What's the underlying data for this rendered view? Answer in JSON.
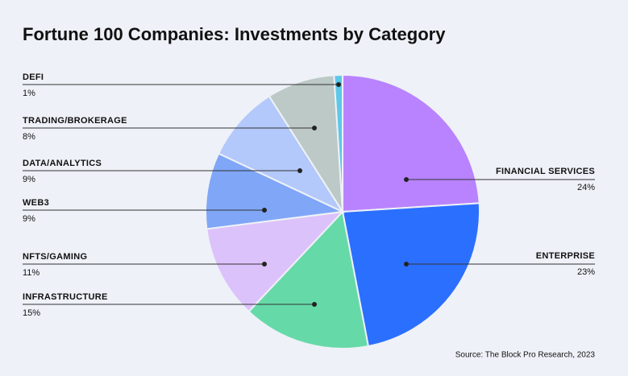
{
  "chart_data": {
    "type": "pie",
    "title": "Fortune 100 Companies: Investments by Category",
    "categories": [
      "FINANCIAL SERVICES",
      "ENTERPRISE",
      "INFRASTRUCTURE",
      "NFTS/GAMING",
      "WEB3",
      "DATA/ANALYTICS",
      "TRADING/BROKERAGE",
      "DEFI"
    ],
    "values": [
      24,
      23,
      15,
      11,
      9,
      9,
      8,
      1
    ],
    "value_labels": [
      "24%",
      "23%",
      "15%",
      "11%",
      "9%",
      "9%",
      "8%",
      "1%"
    ],
    "colors": [
      "#b983ff",
      "#2b6fff",
      "#66d9a8",
      "#dcc2fb",
      "#7fa6f7",
      "#b3c8fb",
      "#bcc9c6",
      "#5ec8e8"
    ],
    "source": "Source: The Block Pro Research, 2023"
  }
}
